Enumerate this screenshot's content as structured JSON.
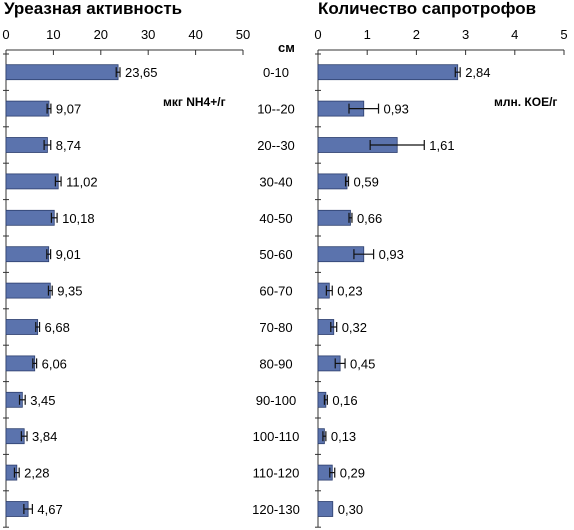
{
  "chart_data": [
    {
      "type": "bar",
      "orientation": "horizontal",
      "title": "Уреазная активность",
      "unit_label": "мкг NH4+/г",
      "xlim": [
        0,
        50
      ],
      "xticks": [
        0,
        10,
        20,
        30,
        40,
        50
      ],
      "categories": [
        "0-10",
        "10--20",
        "20--30",
        "30-40",
        "40-50",
        "50-60",
        "60-70",
        "70-80",
        "80-90",
        "90-100",
        "100-110",
        "110-120",
        "120-130"
      ],
      "values": [
        23.65,
        9.07,
        8.74,
        11.02,
        10.18,
        9.01,
        9.35,
        6.68,
        6.06,
        3.45,
        3.84,
        2.28,
        4.67
      ],
      "value_labels": [
        "23,65",
        "9,07",
        "8,74",
        "11,02",
        "10,18",
        "9,01",
        "9,35",
        "6,68",
        "6,06",
        "3,45",
        "3,84",
        "2,28",
        "4,67"
      ],
      "errors": [
        0.4,
        0.4,
        0.7,
        0.6,
        0.6,
        0.4,
        0.4,
        0.4,
        0.4,
        0.6,
        0.6,
        0.5,
        0.9
      ],
      "bar_color": "#5b73ad"
    },
    {
      "type": "bar",
      "orientation": "horizontal",
      "title": "Количество сапротрофов",
      "unit_label": "млн. КОЕ/г",
      "xlim": [
        0,
        5
      ],
      "xticks": [
        0,
        1,
        2,
        3,
        4,
        5
      ],
      "categories": [
        "0-10",
        "10--20",
        "20--30",
        "30-40",
        "40-50",
        "50-60",
        "60-70",
        "70-80",
        "80-90",
        "90-100",
        "100-110",
        "110-120",
        "120-130"
      ],
      "values": [
        2.84,
        0.93,
        1.61,
        0.59,
        0.66,
        0.93,
        0.23,
        0.32,
        0.45,
        0.16,
        0.13,
        0.29,
        0.3
      ],
      "value_labels": [
        "2,84",
        "0,93",
        "1,61",
        "0,59",
        "0,66",
        "0,93",
        "0,23",
        "0,32",
        "0,45",
        "0,16",
        "0,13",
        "0,29",
        "0,30"
      ],
      "errors": [
        0.05,
        0.3,
        0.55,
        0.03,
        0.03,
        0.2,
        0.06,
        0.06,
        0.1,
        0.03,
        0.03,
        0.05,
        0.0
      ],
      "bar_color": "#5b73ad"
    }
  ],
  "depth_axis_label": "см"
}
